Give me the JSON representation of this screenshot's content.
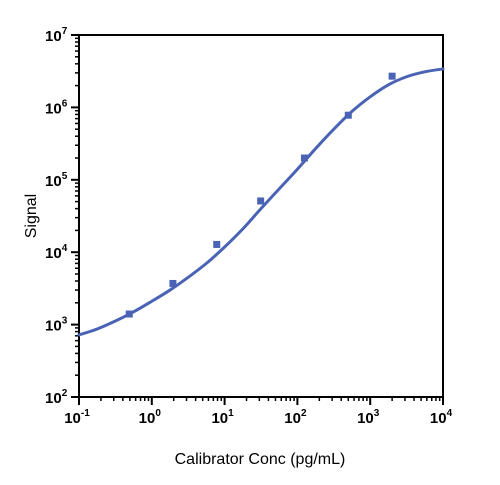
{
  "chart_data": {
    "type": "scatter",
    "title": "",
    "xlabel": "Calibrator Conc (pg/mL)",
    "ylabel": "Signal",
    "xscale": "log",
    "yscale": "log",
    "xlim": [
      0.1,
      10000
    ],
    "ylim": [
      100,
      10000000
    ],
    "grid": false,
    "legend": "none",
    "x_ticks": [
      {
        "base": "10",
        "exp": "-1"
      },
      {
        "base": "10",
        "exp": "0"
      },
      {
        "base": "10",
        "exp": "1"
      },
      {
        "base": "10",
        "exp": "2"
      },
      {
        "base": "10",
        "exp": "3"
      },
      {
        "base": "10",
        "exp": "4"
      }
    ],
    "y_ticks": [
      {
        "base": "10",
        "exp": "2"
      },
      {
        "base": "10",
        "exp": "3"
      },
      {
        "base": "10",
        "exp": "4"
      },
      {
        "base": "10",
        "exp": "5"
      },
      {
        "base": "10",
        "exp": "6"
      },
      {
        "base": "10",
        "exp": "7"
      }
    ],
    "series": [
      {
        "type": "scatter",
        "marker": "square",
        "color": "#4a63b4",
        "x": [
          0.49,
          1.95,
          7.8,
          31.3,
          125,
          500,
          2000
        ],
        "y": [
          1400,
          3700,
          12800,
          51000,
          200000,
          780000,
          2700000
        ]
      },
      {
        "type": "line",
        "curve": "fitted",
        "color": "#4a63b4",
        "x": [
          0.1,
          0.178,
          0.316,
          0.562,
          1,
          1.78,
          3.16,
          5.62,
          10,
          17.8,
          31.6,
          56.2,
          100,
          178,
          316,
          562,
          1000,
          1780,
          3160,
          5620,
          10000
        ],
        "y": [
          720,
          870,
          1120,
          1500,
          2100,
          3000,
          4500,
          7000,
          11800,
          21000,
          40000,
          75000,
          140000,
          270000,
          500000,
          880000,
          1400000,
          2050000,
          2650000,
          3100000,
          3400000
        ]
      }
    ]
  }
}
